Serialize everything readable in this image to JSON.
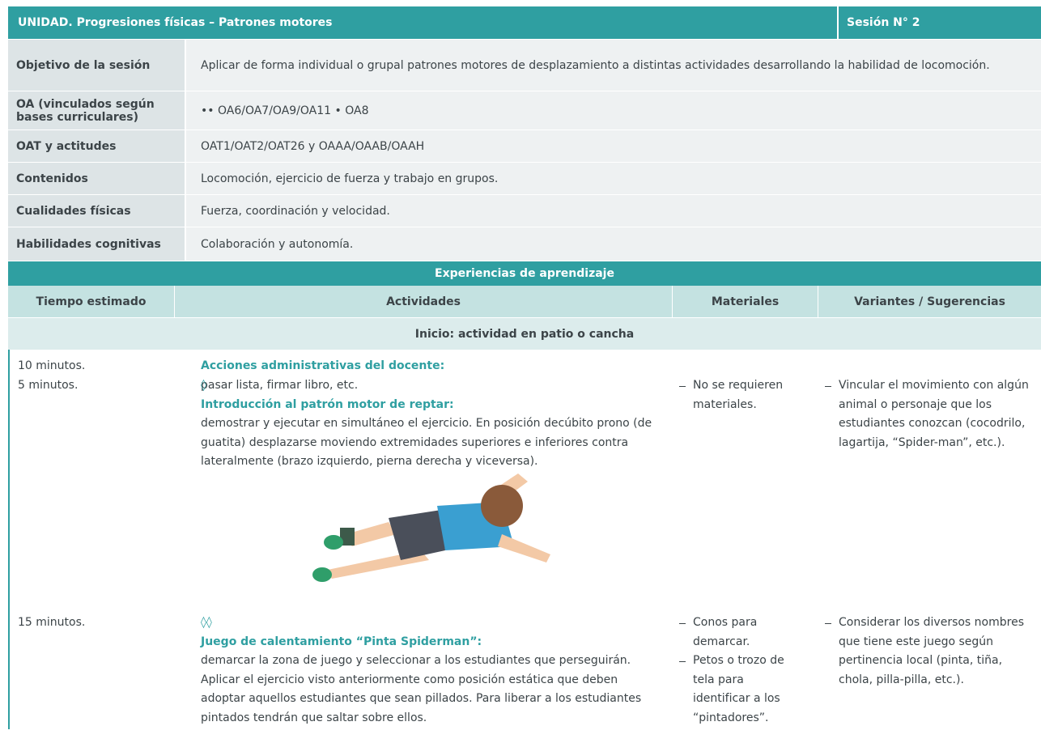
{
  "header": {
    "unit": "UNIDAD. Progresiones físicas – Patrones motores",
    "session": "Sesión N° 2"
  },
  "info": [
    {
      "label": "Objetivo de la sesión",
      "value": "Aplicar de forma individual o grupal patrones motores de desplazamiento a distintas actividades desarrollando la habilidad de locomoción."
    },
    {
      "label": "OA (vinculados según bases curriculares)",
      "value": "•• OA6/OA7/OA9/OA11 • OA8"
    },
    {
      "label": "OAT y actitudes",
      "value": "OAT1/OAT2/OAT26 y OAAA/OAAB/OAAH"
    },
    {
      "label": "Contenidos",
      "value": "Locomoción, ejercicio de fuerza y trabajo en grupos."
    },
    {
      "label": "Cualidades físicas",
      "value": "Fuerza, coordinación y velocidad."
    },
    {
      "label": "Habilidades cognitivas",
      "value": "Colaboración y autonomía."
    }
  ],
  "section": "Experiencias de aprendizaje",
  "columns": [
    "Tiempo estimado",
    "Actividades",
    "Materiales",
    "Variantes / Sugerencias"
  ],
  "phase": "Inicio: actividad en patio o cancha",
  "activities": [
    {
      "time": "10 minutos.",
      "marker": "",
      "title": "Acciones administrativas del docente:",
      "text": " pasar lista, firmar libro, etc.",
      "materials": [],
      "variants": []
    },
    {
      "time": "5 minutos.",
      "marker": "◊",
      "title": "Introducción al patrón motor de reptar:",
      "text": " demostrar y ejecutar en simultáneo el ejercicio. En posición decúbito prono (de guatita) desplazarse moviendo extremidades superiores e inferiores contra lateralmente (brazo izquierdo, pierna derecha y viceversa).",
      "materials": [
        "No se requieren materiales."
      ],
      "variants": [
        "Vincular el movimiento con algún animal o personaje que los estudiantes conozcan (cocodrilo, lagartija, “Spider-man”, etc.)."
      ]
    },
    {
      "time": "15 minutos.",
      "marker": "◊◊",
      "title": "Juego de calentamiento “Pinta Spiderman”:",
      "text": " demarcar la zona de juego y seleccionar a los estudiantes que perseguirán. Aplicar el ejercicio visto anteriormente como posición estática que deben adoptar aquellos estudiantes que sean pillados. Para liberar a los estudiantes pintados tendrán que saltar sobre ellos.",
      "materials": [
        "Conos para demarcar.",
        "Petos o trozo de tela para identificar a los “pintadores”."
      ],
      "variants": [
        "Considerar los diversos nombres que tiene este juego según pertinencia local (pinta, tiña, chola, pilla-pilla, etc.)."
      ]
    }
  ]
}
